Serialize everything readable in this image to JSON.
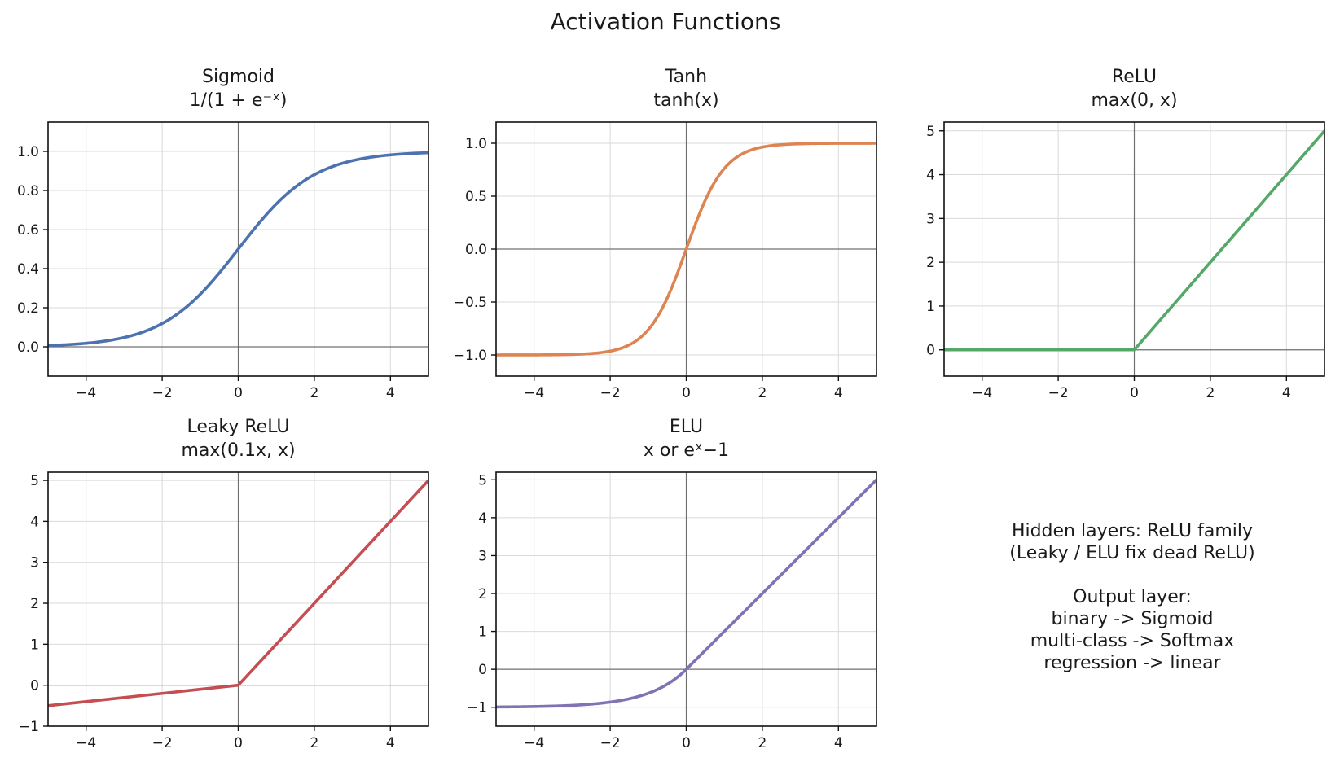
{
  "figure": {
    "title": "Activation Functions"
  },
  "chart_data": [
    {
      "type": "line",
      "id": "sigmoid",
      "title": "Sigmoid",
      "subtitle": "1/(1 + e⁻ˣ)",
      "function": "sigmoid",
      "color": "#4c72b0",
      "xlim": [
        -5,
        5
      ],
      "ylim": [
        -0.15,
        1.15
      ],
      "xticks": [
        -4,
        -2,
        0,
        2,
        4
      ],
      "yticks": [
        0.0,
        0.2,
        0.4,
        0.6,
        0.8,
        1.0
      ],
      "xtick_labels": [
        "−4",
        "−2",
        "0",
        "2",
        "4"
      ],
      "ytick_labels": [
        "0.0",
        "0.2",
        "0.4",
        "0.6",
        "0.8",
        "1.0"
      ],
      "x": [
        -5,
        -4,
        -3,
        -2,
        -1,
        0,
        1,
        2,
        3,
        4,
        5
      ],
      "y": [
        0.007,
        0.018,
        0.047,
        0.119,
        0.269,
        0.5,
        0.731,
        0.881,
        0.953,
        0.982,
        0.993
      ],
      "grid": true
    },
    {
      "type": "line",
      "id": "tanh",
      "title": "Tanh",
      "subtitle": "tanh(x)",
      "function": "tanh",
      "color": "#dd8452",
      "xlim": [
        -5,
        5
      ],
      "ylim": [
        -1.2,
        1.2
      ],
      "xticks": [
        -4,
        -2,
        0,
        2,
        4
      ],
      "yticks": [
        -1.0,
        -0.5,
        0.0,
        0.5,
        1.0
      ],
      "xtick_labels": [
        "−4",
        "−2",
        "0",
        "2",
        "4"
      ],
      "ytick_labels": [
        "−1.0",
        "−0.5",
        "0.0",
        "0.5",
        "1.0"
      ],
      "x": [
        -5,
        -4,
        -3,
        -2,
        -1,
        0,
        1,
        2,
        3,
        4,
        5
      ],
      "y": [
        -1.0,
        -0.999,
        -0.995,
        -0.964,
        -0.762,
        0.0,
        0.762,
        0.964,
        0.995,
        0.999,
        1.0
      ],
      "grid": true
    },
    {
      "type": "line",
      "id": "relu",
      "title": "ReLU",
      "subtitle": "max(0, x)",
      "function": "relu",
      "color": "#55a868",
      "xlim": [
        -5,
        5
      ],
      "ylim": [
        -0.6,
        5.2
      ],
      "xticks": [
        -4,
        -2,
        0,
        2,
        4
      ],
      "yticks": [
        0,
        1,
        2,
        3,
        4,
        5
      ],
      "xtick_labels": [
        "−4",
        "−2",
        "0",
        "2",
        "4"
      ],
      "ytick_labels": [
        "0",
        "1",
        "2",
        "3",
        "4",
        "5"
      ],
      "x": [
        -5,
        0,
        5
      ],
      "y": [
        0,
        0,
        5
      ],
      "grid": true
    },
    {
      "type": "line",
      "id": "leaky-relu",
      "title": "Leaky ReLU",
      "subtitle": "max(0.1x, x)",
      "function": "leaky_relu",
      "color": "#c44e52",
      "xlim": [
        -5,
        5
      ],
      "ylim": [
        -1,
        5.2
      ],
      "xticks": [
        -4,
        -2,
        0,
        2,
        4
      ],
      "yticks": [
        -1,
        0,
        1,
        2,
        3,
        4,
        5
      ],
      "xtick_labels": [
        "−4",
        "−2",
        "0",
        "2",
        "4"
      ],
      "ytick_labels": [
        "−1",
        "0",
        "1",
        "2",
        "3",
        "4",
        "5"
      ],
      "x": [
        -5,
        0,
        5
      ],
      "y": [
        -0.5,
        0,
        5
      ],
      "grid": true
    },
    {
      "type": "line",
      "id": "elu",
      "title": "ELU",
      "subtitle": "x or eˣ−1",
      "function": "elu",
      "color": "#8172b3",
      "xlim": [
        -5,
        5
      ],
      "ylim": [
        -1.5,
        5.2
      ],
      "xticks": [
        -4,
        -2,
        0,
        2,
        4
      ],
      "yticks": [
        -1,
        0,
        1,
        2,
        3,
        4,
        5
      ],
      "xtick_labels": [
        "−4",
        "−2",
        "0",
        "2",
        "4"
      ],
      "ytick_labels": [
        "−1",
        "0",
        "1",
        "2",
        "3",
        "4",
        "5"
      ],
      "x": [
        -5,
        -4,
        -3,
        -2,
        -1,
        0,
        1,
        2,
        3,
        4,
        5
      ],
      "y": [
        -0.993,
        -0.982,
        -0.95,
        -0.865,
        -0.632,
        0,
        1,
        2,
        3,
        4,
        5
      ],
      "grid": true
    }
  ],
  "notes": {
    "lines": [
      "Hidden layers: ReLU family",
      "(Leaky / ELU fix dead ReLU)",
      "",
      "Output layer:",
      "binary -> Sigmoid",
      "multi-class -> Softmax",
      "regression -> linear"
    ]
  }
}
